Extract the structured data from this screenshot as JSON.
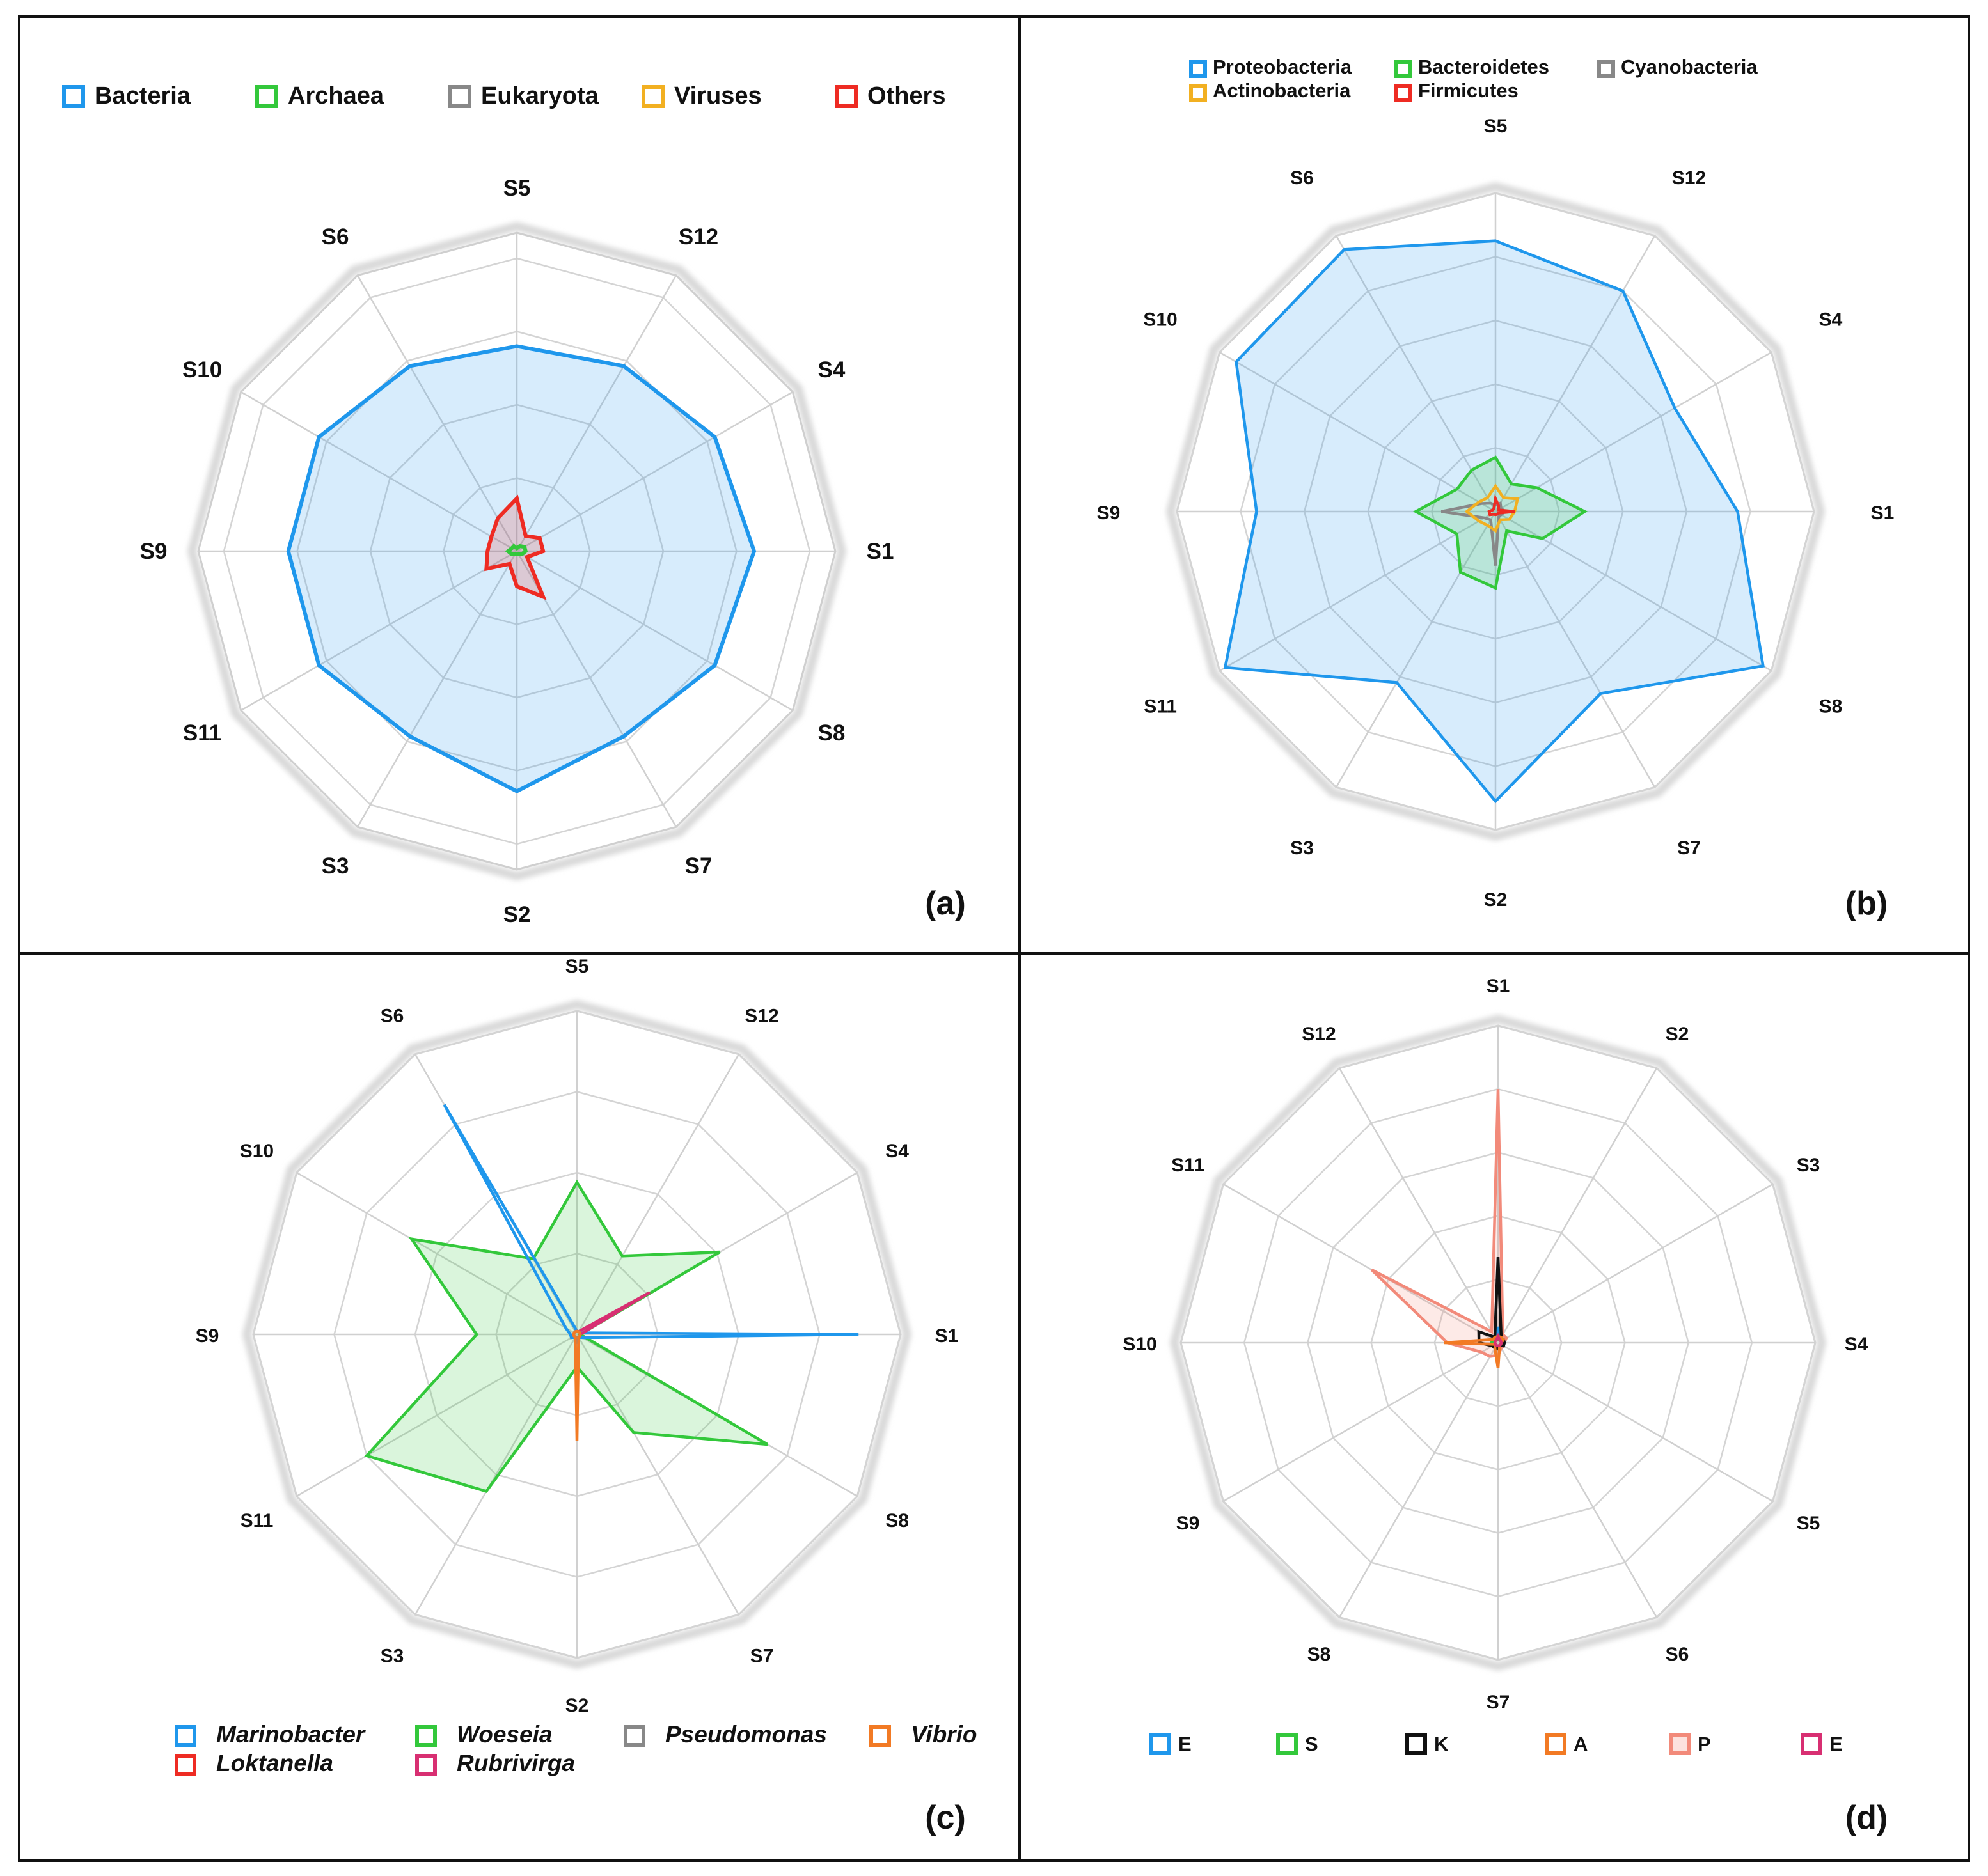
{
  "colors": {
    "blue": "#1f97ec",
    "green": "#33c83b",
    "gray": "#888888",
    "amber": "#f2b021",
    "red": "#ee2b23",
    "orange": "#f27a24",
    "magenta": "#d82f72",
    "black": "#111111",
    "salmon": "#f28a7a"
  },
  "chart_data": [
    {
      "panel": "(a)",
      "type": "radar",
      "axes": [
        "S5",
        "S12",
        "S4",
        "S1",
        "S8",
        "S7",
        "S2",
        "S3",
        "S11",
        "S9",
        "S10",
        "S6"
      ],
      "rmax": 1.0,
      "grid_levels": 4,
      "legend_position": "top",
      "series": [
        {
          "name": "Bacteria",
          "color_key": "blue",
          "fill": true,
          "values": [
            0.7,
            0.73,
            0.78,
            0.81,
            0.78,
            0.73,
            0.82,
            0.73,
            0.78,
            0.78,
            0.78,
            0.73
          ]
        },
        {
          "name": "Archaea",
          "color_key": "green",
          "fill": false,
          "values": [
            0.01,
            0.02,
            0.03,
            0.03,
            0.02,
            0.01,
            0.01,
            0.01,
            0.02,
            0.03,
            0.02,
            0.02
          ]
        },
        {
          "name": "Eukaryota",
          "color_key": "gray",
          "fill": false,
          "values": [
            0.0,
            0.0,
            0.0,
            0.0,
            0.0,
            0.0,
            0.0,
            0.0,
            0.0,
            0.0,
            0.0,
            0.0
          ]
        },
        {
          "name": "Viruses",
          "color_key": "amber",
          "fill": false,
          "values": [
            0.0,
            0.0,
            0.0,
            0.0,
            0.0,
            0.0,
            0.0,
            0.0,
            0.0,
            0.0,
            0.0,
            0.0
          ]
        },
        {
          "name": "Others",
          "color_key": "red",
          "fill": true,
          "values": [
            0.18,
            0.06,
            0.09,
            0.09,
            0.04,
            0.18,
            0.12,
            0.05,
            0.12,
            0.1,
            0.1,
            0.13
          ]
        }
      ]
    },
    {
      "panel": "(b)",
      "type": "radar",
      "axes": [
        "S5",
        "S12",
        "S4",
        "S1",
        "S8",
        "S7",
        "S2",
        "S3",
        "S11",
        "S9",
        "S10",
        "S6"
      ],
      "rmax": 1.0,
      "grid_levels": 5,
      "legend_position": "top",
      "series": [
        {
          "name": "Proteobacteria",
          "color_key": "blue",
          "fill": true,
          "values": [
            0.85,
            0.8,
            0.65,
            0.76,
            0.97,
            0.66,
            0.91,
            0.62,
            0.98,
            0.75,
            0.94,
            0.95
          ]
        },
        {
          "name": "Bacteroidetes",
          "color_key": "green",
          "fill": true,
          "values": [
            0.17,
            0.1,
            0.15,
            0.28,
            0.17,
            0.07,
            0.24,
            0.22,
            0.14,
            0.25,
            0.14,
            0.15
          ]
        },
        {
          "name": "Cyanobacteria",
          "color_key": "gray",
          "fill": false,
          "values": [
            0.02,
            0.03,
            0.02,
            0.03,
            0.02,
            0.02,
            0.17,
            0.03,
            0.04,
            0.17,
            0.05,
            0.03
          ]
        },
        {
          "name": "Actinobacteria",
          "color_key": "amber",
          "fill": false,
          "values": [
            0.08,
            0.05,
            0.08,
            0.06,
            0.05,
            0.03,
            0.06,
            0.05,
            0.06,
            0.09,
            0.06,
            0.05
          ]
        },
        {
          "name": "Firmicutes",
          "color_key": "red",
          "fill": false,
          "values": [
            0.04,
            0.02,
            0.01,
            0.06,
            0.01,
            0.01,
            0.01,
            0.01,
            0.02,
            0.02,
            0.01,
            0.01
          ]
        }
      ]
    },
    {
      "panel": "(c)",
      "type": "radar",
      "axes": [
        "S5",
        "S12",
        "S4",
        "S1",
        "S8",
        "S7",
        "S2",
        "S3",
        "S11",
        "S9",
        "S10",
        "S6"
      ],
      "rmax": 1.0,
      "grid_levels": 4,
      "legend_position": "bottom",
      "series": [
        {
          "name": "Marinobacter",
          "color_key": "blue",
          "fill": false,
          "values": [
            0.01,
            0.01,
            0.01,
            0.87,
            0.02,
            0.01,
            0.02,
            0.01,
            0.02,
            0.02,
            0.04,
            0.82
          ]
        },
        {
          "name": "Loktanella",
          "color_key": "red",
          "fill": false,
          "values": [
            0.01,
            0.01,
            0.01,
            0.01,
            0.01,
            0.01,
            0.01,
            0.01,
            0.01,
            0.01,
            0.01,
            0.01
          ]
        },
        {
          "name": "Woeseia",
          "color_key": "green",
          "fill": true,
          "values": [
            0.47,
            0.28,
            0.51,
            0.01,
            0.68,
            0.35,
            0.1,
            0.56,
            0.75,
            0.31,
            0.59,
            0.27
          ]
        },
        {
          "name": "Rubrivirga",
          "color_key": "magenta",
          "fill": false,
          "values": [
            0.01,
            0.01,
            0.26,
            0.01,
            0.01,
            0.01,
            0.01,
            0.01,
            0.01,
            0.01,
            0.01,
            0.01
          ]
        },
        {
          "name": "Pseudomonas",
          "color_key": "gray",
          "fill": false,
          "values": [
            0.01,
            0.01,
            0.01,
            0.01,
            0.01,
            0.01,
            0.01,
            0.01,
            0.01,
            0.01,
            0.01,
            0.01
          ]
        },
        {
          "name": "Vibrio",
          "color_key": "orange",
          "fill": false,
          "values": [
            0.01,
            0.01,
            0.01,
            0.01,
            0.01,
            0.01,
            0.33,
            0.01,
            0.01,
            0.01,
            0.01,
            0.01
          ]
        }
      ]
    },
    {
      "panel": "(d)",
      "type": "radar",
      "axes": [
        "S1",
        "S2",
        "S3",
        "S4",
        "S5",
        "S6",
        "S7",
        "S8",
        "S9",
        "S10",
        "S11",
        "S12"
      ],
      "rmax": 1.0,
      "grid_levels": 5,
      "legend_position": "bottom",
      "series": [
        {
          "name": "E",
          "color_key": "blue",
          "fill": false,
          "values": [
            0.05,
            0.02,
            0.02,
            0.02,
            0.02,
            0.01,
            0.01,
            0.01,
            0.01,
            0.02,
            0.02,
            0.01
          ]
        },
        {
          "name": "S",
          "color_key": "green",
          "fill": false,
          "values": [
            0.01,
            0.01,
            0.01,
            0.01,
            0.01,
            0.01,
            0.01,
            0.01,
            0.01,
            0.02,
            0.02,
            0.01
          ]
        },
        {
          "name": "K",
          "color_key": "black",
          "fill": false,
          "values": [
            0.27,
            0.02,
            0.02,
            0.02,
            0.02,
            0.01,
            0.02,
            0.02,
            0.02,
            0.06,
            0.07,
            0.02
          ]
        },
        {
          "name": "A",
          "color_key": "orange",
          "fill": false,
          "values": [
            0.02,
            0.02,
            0.02,
            0.01,
            0.01,
            0.01,
            0.08,
            0.02,
            0.01,
            0.17,
            0.02,
            0.02
          ]
        },
        {
          "name": "P",
          "color_key": "salmon",
          "fill": true,
          "values": [
            0.8,
            0.03,
            0.03,
            0.02,
            0.02,
            0.02,
            0.04,
            0.05,
            0.06,
            0.16,
            0.46,
            0.04
          ]
        },
        {
          "name": "E",
          "color_key": "magenta",
          "fill": false,
          "values": [
            0.02,
            0.01,
            0.01,
            0.01,
            0.01,
            0.01,
            0.01,
            0.01,
            0.01,
            0.01,
            0.01,
            0.01
          ]
        }
      ]
    }
  ]
}
